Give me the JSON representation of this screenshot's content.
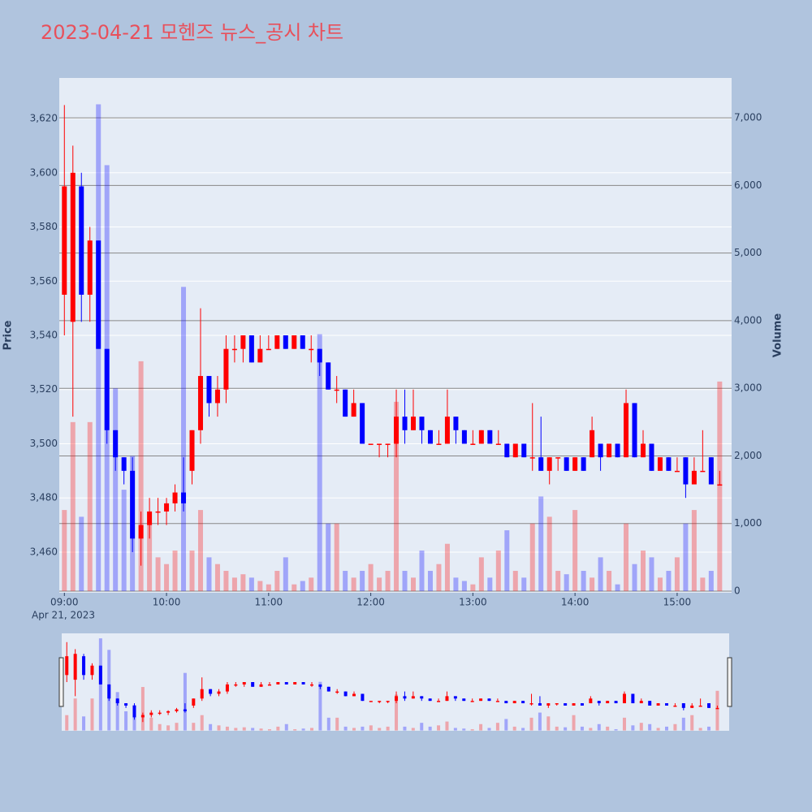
{
  "chart_data": {
    "type": "candlestick",
    "title": "2023-04-21 모헨즈 뉴스_공시 차트",
    "x": [
      "2023-04-21 09:00",
      "2023-04-21 09:05",
      "2023-04-21 09:10",
      "2023-04-21 09:15",
      "2023-04-21 09:20",
      "2023-04-21 09:25",
      "2023-04-21 09:30",
      "2023-04-21 09:35",
      "2023-04-21 09:40",
      "2023-04-21 09:45",
      "2023-04-21 09:50",
      "2023-04-21 09:55",
      "2023-04-21 10:00",
      "2023-04-21 10:05",
      "2023-04-21 10:10",
      "2023-04-21 10:15",
      "2023-04-21 10:20",
      "2023-04-21 10:25",
      "2023-04-21 10:30",
      "2023-04-21 10:35",
      "2023-04-21 10:40",
      "2023-04-21 10:45",
      "2023-04-21 10:50",
      "2023-04-21 10:55",
      "2023-04-21 11:00",
      "2023-04-21 11:05",
      "2023-04-21 11:10",
      "2023-04-21 11:15",
      "2023-04-21 11:20",
      "2023-04-21 11:25",
      "2023-04-21 11:30",
      "2023-04-21 11:35",
      "2023-04-21 11:40",
      "2023-04-21 11:45",
      "2023-04-21 11:50",
      "2023-04-21 11:55",
      "2023-04-21 12:00",
      "2023-04-21 12:05",
      "2023-04-21 12:10",
      "2023-04-21 12:15",
      "2023-04-21 12:20",
      "2023-04-21 12:25",
      "2023-04-21 12:30",
      "2023-04-21 12:35",
      "2023-04-21 12:40",
      "2023-04-21 12:45",
      "2023-04-21 12:50",
      "2023-04-21 12:55",
      "2023-04-21 13:00",
      "2023-04-21 13:05",
      "2023-04-21 13:10",
      "2023-04-21 13:15",
      "2023-04-21 13:20",
      "2023-04-21 13:25",
      "2023-04-21 13:30",
      "2023-04-21 13:35",
      "2023-04-21 13:40",
      "2023-04-21 13:45",
      "2023-04-21 13:50",
      "2023-04-21 13:55",
      "2023-04-21 14:00",
      "2023-04-21 14:05",
      "2023-04-21 14:10",
      "2023-04-21 14:15",
      "2023-04-21 14:20",
      "2023-04-21 14:25",
      "2023-04-21 14:30",
      "2023-04-21 14:35",
      "2023-04-21 14:40",
      "2023-04-21 14:45",
      "2023-04-21 14:50",
      "2023-04-21 14:55",
      "2023-04-21 15:00",
      "2023-04-21 15:05",
      "2023-04-21 15:10",
      "2023-04-21 15:15",
      "2023-04-21 15:20",
      "2023-04-21 15:25"
    ],
    "open": [
      3555,
      3545,
      3595,
      3555,
      3575,
      3535,
      3505,
      3495,
      3490,
      3465,
      3470,
      3475,
      3475,
      3478,
      3482,
      3490,
      3505,
      3525,
      3515,
      3520,
      3535,
      3535,
      3540,
      3530,
      3535,
      3535,
      3540,
      3535,
      3540,
      3535,
      3535,
      3530,
      3520,
      3520,
      3510,
      3515,
      3500,
      3500,
      3500,
      3500,
      3510,
      3505,
      3510,
      3505,
      3500,
      3500,
      3510,
      3505,
      3500,
      3500,
      3505,
      3500,
      3500,
      3495,
      3500,
      3495,
      3495,
      3490,
      3495,
      3495,
      3490,
      3495,
      3495,
      3500,
      3495,
      3500,
      3495,
      3515,
      3495,
      3500,
      3490,
      3495,
      3490,
      3495,
      3485,
      3490,
      3495,
      3485
    ],
    "high": [
      3625,
      3610,
      3600,
      3580,
      3575,
      3535,
      3505,
      3495,
      3495,
      3475,
      3480,
      3480,
      3480,
      3485,
      3495,
      3505,
      3550,
      3525,
      3525,
      3540,
      3540,
      3540,
      3540,
      3540,
      3540,
      3540,
      3540,
      3540,
      3540,
      3540,
      3535,
      3530,
      3525,
      3520,
      3520,
      3515,
      3500,
      3500,
      3500,
      3520,
      3520,
      3520,
      3510,
      3505,
      3505,
      3520,
      3510,
      3505,
      3505,
      3505,
      3505,
      3505,
      3500,
      3500,
      3500,
      3515,
      3510,
      3495,
      3495,
      3495,
      3495,
      3495,
      3510,
      3500,
      3500,
      3500,
      3520,
      3515,
      3505,
      3500,
      3495,
      3495,
      3495,
      3495,
      3495,
      3505,
      3495,
      3490
    ],
    "low": [
      3540,
      3510,
      3545,
      3545,
      3535,
      3500,
      3490,
      3485,
      3460,
      3455,
      3465,
      3470,
      3470,
      3475,
      3475,
      3485,
      3500,
      3510,
      3510,
      3515,
      3530,
      3530,
      3530,
      3530,
      3535,
      3535,
      3535,
      3535,
      3535,
      3530,
      3525,
      3520,
      3515,
      3510,
      3510,
      3500,
      3500,
      3495,
      3495,
      3495,
      3500,
      3505,
      3500,
      3500,
      3500,
      3500,
      3500,
      3500,
      3500,
      3500,
      3500,
      3500,
      3495,
      3495,
      3495,
      3490,
      3490,
      3485,
      3490,
      3490,
      3490,
      3490,
      3495,
      3490,
      3495,
      3495,
      3495,
      3495,
      3495,
      3490,
      3490,
      3490,
      3490,
      3480,
      3485,
      3490,
      3485,
      3485
    ],
    "close": [
      3595,
      3600,
      3555,
      3575,
      3535,
      3505,
      3495,
      3490,
      3465,
      3470,
      3475,
      3475,
      3478,
      3482,
      3478,
      3505,
      3525,
      3515,
      3520,
      3535,
      3535,
      3540,
      3530,
      3535,
      3535,
      3540,
      3535,
      3540,
      3535,
      3535,
      3530,
      3520,
      3520,
      3510,
      3515,
      3500,
      3500,
      3500,
      3500,
      3510,
      3505,
      3510,
      3505,
      3500,
      3500,
      3510,
      3505,
      3500,
      3500,
      3505,
      3500,
      3500,
      3495,
      3500,
      3495,
      3495,
      3490,
      3495,
      3495,
      3490,
      3495,
      3490,
      3505,
      3495,
      3500,
      3495,
      3515,
      3495,
      3500,
      3490,
      3495,
      3490,
      3490,
      3485,
      3490,
      3490,
      3485,
      3485
    ],
    "volume": [
      1200,
      2500,
      1100,
      2500,
      7200,
      6300,
      3000,
      1500,
      2000,
      3400,
      1000,
      500,
      400,
      600,
      4500,
      600,
      1200,
      500,
      400,
      300,
      200,
      250,
      200,
      150,
      100,
      300,
      500,
      100,
      150,
      200,
      3800,
      1000,
      1000,
      300,
      200,
      300,
      400,
      200,
      300,
      2800,
      300,
      200,
      600,
      300,
      400,
      700,
      200,
      150,
      100,
      500,
      200,
      600,
      900,
      300,
      200,
      1000,
      1400,
      1100,
      300,
      250,
      1200,
      300,
      200,
      500,
      300,
      100,
      1000,
      400,
      600,
      500,
      200,
      300,
      500,
      1000,
      1200,
      200,
      300,
      3100
    ],
    "increasing_color": "#ff0000",
    "decreasing_color": "#0000ff",
    "xlim": [
      "2023-04-21 08:57",
      "2023-04-21 15:32"
    ],
    "xticks": [
      {
        "value": "2023-04-21 09:00",
        "label": "09:00"
      },
      {
        "value": "2023-04-21 10:00",
        "label": "10:00"
      },
      {
        "value": "2023-04-21 11:00",
        "label": "11:00"
      },
      {
        "value": "2023-04-21 12:00",
        "label": "12:00"
      },
      {
        "value": "2023-04-21 13:00",
        "label": "13:00"
      },
      {
        "value": "2023-04-21 14:00",
        "label": "14:00"
      },
      {
        "value": "2023-04-21 15:00",
        "label": "15:00"
      }
    ],
    "x_date_label": "Apr 21, 2023",
    "y_title": "Price",
    "ylim": [
      3445,
      3635
    ],
    "yticks": [
      {
        "value": 3460,
        "label": "3,460"
      },
      {
        "value": 3480,
        "label": "3,480"
      },
      {
        "value": 3500,
        "label": "3,500"
      },
      {
        "value": 3520,
        "label": "3,520"
      },
      {
        "value": 3540,
        "label": "3,540"
      },
      {
        "value": 3560,
        "label": "3,560"
      },
      {
        "value": 3580,
        "label": "3,580"
      },
      {
        "value": 3600,
        "label": "3,600"
      },
      {
        "value": 3620,
        "label": "3,620"
      }
    ],
    "y2_title": "Volume",
    "y2lim": [
      -24,
      7590
    ],
    "y2ticks": [
      0,
      {
        "value": 1000,
        "label": "1,000"
      },
      {
        "value": 2000,
        "label": "2,000"
      },
      {
        "value": 3000,
        "label": "3,000"
      },
      {
        "value": 4000,
        "label": "4,000"
      },
      {
        "value": 5000,
        "label": "5,000"
      },
      {
        "value": 6000,
        "label": "6,000"
      },
      {
        "value": 7000,
        "label": "7,000"
      }
    ],
    "grid": true,
    "rangeslider": true
  }
}
